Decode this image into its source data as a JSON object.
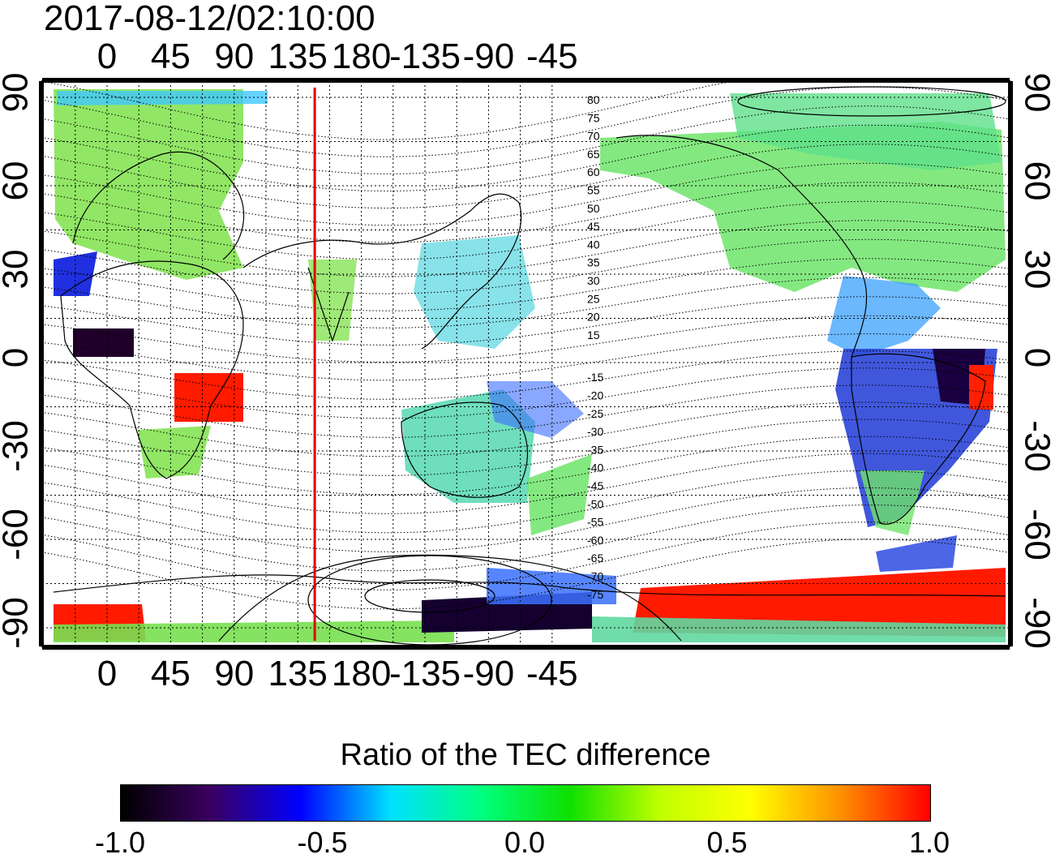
{
  "title": "2017-08-12/02:10:00",
  "map": {
    "x_ticks_top": [
      "0",
      "45",
      "90",
      "135",
      "180",
      "-135",
      "-90",
      "-45"
    ],
    "x_ticks_bottom": [
      "0",
      "45",
      "90",
      "135",
      "180",
      "-135",
      "-90",
      "-45"
    ],
    "y_ticks_left": [
      "90",
      "60",
      "30",
      "0",
      "-30",
      "-60",
      "-90"
    ],
    "y_ticks_right": [
      "90",
      "60",
      "30",
      "0",
      "-30",
      "-60",
      "-90"
    ],
    "contour_labels": [
      "80",
      "75",
      "70",
      "65",
      "60",
      "55",
      "50",
      "45",
      "40",
      "35",
      "30",
      "25",
      "20",
      "15",
      "-15",
      "-20",
      "-25",
      "-30",
      "-35",
      "-40",
      "-45",
      "-50",
      "-55",
      "-60",
      "-65",
      "-70",
      "-75"
    ],
    "marker_longitude": 147,
    "marker_color": "#e00000"
  },
  "colorbar": {
    "title": "Ratio of the TEC difference",
    "ticks": [
      "-1.0",
      "-0.5",
      "0.0",
      "0.5",
      "1.0"
    ],
    "colors": [
      "#000000",
      "#3a0060",
      "#0000ff",
      "#00e0ff",
      "#00ff80",
      "#10e000",
      "#c0ff00",
      "#ffff00",
      "#ff9000",
      "#ff0000"
    ]
  }
}
